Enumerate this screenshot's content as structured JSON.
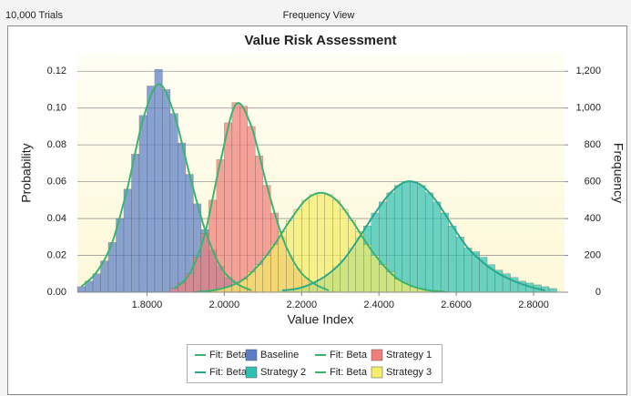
{
  "header": {
    "trials": "10,000 Trials",
    "view": "Frequency View"
  },
  "chart_data": {
    "type": "histogram",
    "title": "Value Risk Assessment",
    "xlabel": "Value Index",
    "ylabel": "Probability",
    "y2label": "Frequency",
    "xlim": [
      1.62,
      2.88
    ],
    "xticks": [
      {
        "value": 1.8,
        "label": "1.8000"
      },
      {
        "value": 2.0,
        "label": "2.0000"
      },
      {
        "value": 2.2,
        "label": "2.2000"
      },
      {
        "value": 2.4,
        "label": "2.4000"
      },
      {
        "value": 2.6,
        "label": "2.6000"
      },
      {
        "value": 2.8,
        "label": "2.8000"
      }
    ],
    "ylim": [
      0,
      0.13
    ],
    "yticks": [
      {
        "value": 0,
        "label": "0.00"
      },
      0.02,
      0.04,
      0.06,
      0.08,
      {
        "value": 0.1,
        "label": "0.10"
      },
      0.12
    ],
    "y2lim": [
      0,
      1300
    ],
    "y2ticks": [
      0,
      200,
      400,
      600,
      800,
      {
        "value": 1000,
        "label": "1,000"
      },
      {
        "value": 1200,
        "label": "1,200"
      }
    ],
    "grid": true,
    "legend": "bottom",
    "series": [
      {
        "name": "Fit: Beta",
        "type": "line",
        "color": "#3cb371",
        "x": [
          1.63,
          1.67,
          1.71,
          1.75,
          1.79,
          1.83,
          1.87,
          1.91,
          1.95,
          1.99,
          2.03,
          2.07
        ],
        "values": [
          0.003,
          0.011,
          0.027,
          0.057,
          0.094,
          0.113,
          0.097,
          0.064,
          0.034,
          0.014,
          0.005,
          0.001
        ]
      },
      {
        "name": "Baseline",
        "type": "histogram",
        "color": "#5b7ec6",
        "bins": [
          1.62,
          1.64,
          1.66,
          1.68,
          1.7,
          1.72,
          1.74,
          1.76,
          1.78,
          1.8,
          1.82,
          1.84,
          1.86,
          1.88,
          1.9,
          1.92,
          1.94,
          1.96,
          1.98,
          2.0,
          2.02,
          2.04,
          2.06,
          2.08
        ],
        "values": [
          0.003,
          0.006,
          0.01,
          0.017,
          0.027,
          0.04,
          0.056,
          0.075,
          0.096,
          0.112,
          0.121,
          0.11,
          0.097,
          0.081,
          0.064,
          0.048,
          0.034,
          0.023,
          0.014,
          0.008,
          0.005,
          0.002,
          0.001
        ]
      },
      {
        "name": "Fit: Beta",
        "type": "line",
        "color": "#3cb371",
        "x": [
          1.87,
          1.91,
          1.95,
          1.99,
          2.03,
          2.07,
          2.11,
          2.15,
          2.19,
          2.23,
          2.27
        ],
        "values": [
          0.002,
          0.01,
          0.032,
          0.071,
          0.102,
          0.09,
          0.058,
          0.03,
          0.013,
          0.005,
          0.001
        ]
      },
      {
        "name": "Strategy 1",
        "type": "histogram",
        "color": "#f07f7a",
        "bins": [
          1.86,
          1.88,
          1.9,
          1.92,
          1.94,
          1.96,
          1.98,
          2.0,
          2.02,
          2.04,
          2.06,
          2.08,
          2.1,
          2.12,
          2.14,
          2.16,
          2.18,
          2.2,
          2.22,
          2.24,
          2.26,
          2.28,
          2.3
        ],
        "values": [
          0.002,
          0.005,
          0.01,
          0.019,
          0.032,
          0.05,
          0.072,
          0.092,
          0.103,
          0.101,
          0.09,
          0.074,
          0.058,
          0.043,
          0.03,
          0.02,
          0.013,
          0.008,
          0.005,
          0.003,
          0.001,
          0.001
        ]
      },
      {
        "name": "Fit: Beta",
        "type": "line",
        "color": "#2aa88a",
        "x": [
          2.15,
          2.19,
          2.23,
          2.27,
          2.31,
          2.35,
          2.39,
          2.43,
          2.47,
          2.51,
          2.55,
          2.59,
          2.63,
          2.67,
          2.71,
          2.75,
          2.79,
          2.83
        ],
        "values": [
          0.001,
          0.002,
          0.005,
          0.01,
          0.018,
          0.03,
          0.043,
          0.054,
          0.06,
          0.058,
          0.049,
          0.036,
          0.024,
          0.016,
          0.01,
          0.006,
          0.003,
          0.001
        ]
      },
      {
        "name": "Strategy 2",
        "type": "histogram",
        "color": "#2fc2b4",
        "bins": [
          2.14,
          2.16,
          2.18,
          2.2,
          2.22,
          2.24,
          2.26,
          2.28,
          2.3,
          2.32,
          2.34,
          2.36,
          2.38,
          2.4,
          2.42,
          2.44,
          2.46,
          2.48,
          2.5,
          2.52,
          2.54,
          2.56,
          2.58,
          2.6,
          2.62,
          2.64,
          2.66,
          2.68,
          2.7,
          2.72,
          2.74,
          2.76,
          2.78,
          2.8,
          2.82,
          2.84,
          2.86
        ],
        "values": [
          0.0007,
          0.001,
          0.002,
          0.003,
          0.005,
          0.007,
          0.01,
          0.014,
          0.018,
          0.024,
          0.03,
          0.036,
          0.043,
          0.049,
          0.054,
          0.058,
          0.06,
          0.06,
          0.058,
          0.054,
          0.049,
          0.043,
          0.036,
          0.03,
          0.024,
          0.022,
          0.019,
          0.015,
          0.012,
          0.01,
          0.008,
          0.006,
          0.005,
          0.004,
          0.003,
          0.002
        ]
      },
      {
        "name": "Fit: Beta",
        "type": "line",
        "color": "#3cb371",
        "x": [
          1.93,
          1.97,
          2.01,
          2.05,
          2.09,
          2.13,
          2.17,
          2.21,
          2.25,
          2.29,
          2.33,
          2.37,
          2.41,
          2.45,
          2.49,
          2.53,
          2.57
        ],
        "values": [
          0.0003,
          0.001,
          0.003,
          0.007,
          0.015,
          0.026,
          0.039,
          0.05,
          0.054,
          0.05,
          0.039,
          0.026,
          0.015,
          0.007,
          0.003,
          0.001,
          0.0003
        ]
      },
      {
        "name": "Strategy 3",
        "type": "histogram",
        "color": "#f4ec6a",
        "bins": [
          1.92,
          1.94,
          1.96,
          1.98,
          2.0,
          2.02,
          2.04,
          2.06,
          2.08,
          2.1,
          2.12,
          2.14,
          2.16,
          2.18,
          2.2,
          2.22,
          2.24,
          2.26,
          2.28,
          2.3,
          2.32,
          2.34,
          2.36,
          2.38,
          2.4,
          2.42,
          2.44,
          2.46,
          2.48,
          2.5,
          2.52,
          2.54,
          2.56,
          2.58
        ],
        "values": [
          0.0003,
          0.0006,
          0.001,
          0.002,
          0.003,
          0.005,
          0.007,
          0.011,
          0.015,
          0.02,
          0.026,
          0.033,
          0.039,
          0.045,
          0.05,
          0.053,
          0.054,
          0.053,
          0.05,
          0.045,
          0.039,
          0.033,
          0.026,
          0.02,
          0.015,
          0.011,
          0.007,
          0.005,
          0.003,
          0.002,
          0.001,
          0.0006,
          0.0003
        ]
      }
    ]
  }
}
